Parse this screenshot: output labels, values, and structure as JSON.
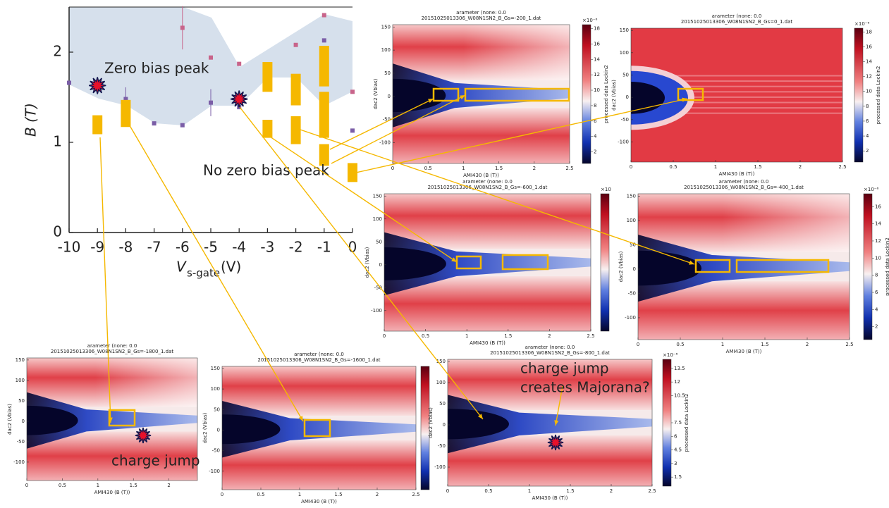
{
  "chart_data": [
    {
      "type": "phase",
      "xlabel": "V",
      "xlabel_sub": "s-gate",
      "xlabel_unit": "(V)",
      "ylabel": "B (T)",
      "x": [
        -10,
        -9,
        -8,
        -7,
        -6,
        -5,
        -4,
        -3,
        -2,
        -1,
        0
      ],
      "xlim": [
        -10,
        0
      ],
      "xticks": [
        -10,
        -9,
        -8,
        -7,
        -6,
        -5,
        -4,
        -3,
        -2,
        -1,
        0
      ],
      "ylim": [
        0,
        2.5
      ],
      "yticks": [
        0,
        1,
        2
      ],
      "series": [
        {
          "color": "#c8648a",
          "values": [
            null,
            null,
            null,
            null,
            2.27,
            1.94,
            1.87,
            null,
            2.08,
            2.41,
            1.56
          ],
          "errors": [
            null,
            null,
            null,
            null,
            0.24,
            null,
            null,
            null,
            null,
            null,
            null
          ]
        },
        {
          "color": "#7b5ea7",
          "values": [
            1.66,
            null,
            1.48,
            1.21,
            1.19,
            1.44,
            1.39,
            null,
            null,
            2.13,
            1.13
          ],
          "errors": [
            null,
            null,
            0.13,
            null,
            null,
            0.15,
            null,
            null,
            null,
            null,
            null
          ]
        }
      ],
      "ranges": {
        "color": "#f5b800",
        "x": [
          -9,
          -8,
          -3,
          -3,
          -2,
          -2,
          -1,
          -1,
          -1,
          0
        ],
        "low": [
          1.09,
          1.17,
          1.05,
          1.56,
          0.98,
          1.41,
          0.74,
          1.05,
          1.62,
          0.56
        ],
        "high": [
          1.3,
          1.47,
          1.25,
          1.89,
          1.29,
          1.76,
          0.98,
          1.56,
          2.07,
          0.77
        ]
      },
      "markers": {
        "color": "#e8102a",
        "x": [
          -9,
          -4
        ],
        "y": [
          1.63,
          1.48
        ]
      },
      "annotations": [
        "Zero bias peak",
        "No zero bias peak"
      ]
    },
    {
      "type": "heatmap",
      "title": [
        "arameter (none: 0.0",
        "20151025013306_W08N1SN2_B_Gs=-200_1.dat"
      ],
      "xlabel": "AMI430 (B (T))",
      "ylabel": "dac2 (Vbias)",
      "xlim": [
        0,
        2.5
      ],
      "xticks": [
        0,
        0.5,
        1,
        1.5,
        2,
        2.5
      ],
      "ylim": [
        -145,
        155
      ],
      "yticks": [
        -100,
        -50,
        0,
        50,
        100,
        150
      ],
      "colorbar_label": "processed data Lockin2",
      "cbar_scale": "×10⁻⁶",
      "clim": [
        0.5,
        18.5
      ],
      "cticks": [
        2,
        4,
        6,
        8,
        10,
        12,
        14,
        16,
        18
      ]
    },
    {
      "type": "heatmap",
      "title": [
        "arameter (none: 0.0",
        "20151025013306_W08N1SN2_B_Gs=0_1.dat"
      ],
      "xlabel": "AMI430 (B (T))",
      "ylabel": "dac2 (Vbias)",
      "xlim": [
        0,
        2.5
      ],
      "xticks": [
        0,
        0.5,
        1,
        1.5,
        2,
        2.5
      ],
      "ylim": [
        -145,
        155
      ],
      "yticks": [
        -100,
        -50,
        0,
        50,
        100,
        150
      ],
      "colorbar_label": "processed data Lockin2",
      "cbar_scale": "×10⁻⁶",
      "clim": [
        0.5,
        18.5
      ],
      "cticks": [
        2,
        4,
        6,
        8,
        10,
        12,
        14,
        16,
        18
      ]
    },
    {
      "type": "heatmap",
      "title": [
        "arameter (none: 0.0",
        "20151025013306_W08N1SN2_B_Gs=-600_1.dat"
      ],
      "xlabel": "AMI430 (B (T))",
      "ylabel": "dac2 (Vbias)",
      "xlim": [
        0,
        2.5
      ],
      "xticks": [
        0,
        0.5,
        1,
        1.5,
        2,
        2.5
      ],
      "ylim": [
        -145,
        155
      ],
      "yticks": [
        -100,
        -50,
        0,
        50,
        100,
        150
      ],
      "cbar_scale": "×10"
    },
    {
      "type": "heatmap",
      "title": [
        "arameter (none: 0.0",
        "20151025013306_W08N1SN2_B_Gs=-400_1.dat"
      ],
      "xlabel": "AMI430 (B (T))",
      "ylabel": "dac2 (Vbias)",
      "xlim": [
        0,
        2.5
      ],
      "xticks": [
        0,
        0.5,
        1,
        1.5,
        2,
        2.5
      ],
      "ylim": [
        -145,
        155
      ],
      "yticks": [
        -100,
        -50,
        0,
        50,
        100,
        150
      ],
      "colorbar_label": "processed data Lockin2",
      "cbar_scale": "×10⁻⁶",
      "clim": [
        0.5,
        17.5
      ],
      "cticks": [
        2,
        4,
        6,
        8,
        10,
        12,
        14,
        16
      ]
    },
    {
      "type": "heatmap",
      "title": [
        "arameter (none: 0.0",
        "20151025013306_W08N1SN2_B_Gs=-1800_1.dat"
      ],
      "xlabel": "AMI430 (B (T))",
      "ylabel": "dac2 (Vbias)",
      "xlim": [
        0,
        2.4
      ],
      "xticks": [
        0,
        0.5,
        1,
        1.5,
        2
      ],
      "ylim": [
        -145,
        155
      ],
      "yticks": [
        -100,
        -50,
        0,
        50,
        100,
        150
      ],
      "annotations": [
        "charge jump"
      ]
    },
    {
      "type": "heatmap",
      "title": [
        "arameter (none: 0.0",
        "20151025013306_W08N1SN2_B_Gs=-1600_1.dat"
      ],
      "xlabel": "AMI430 (B (T))",
      "ylabel": "dac2 (Vbias)",
      "xlim": [
        0,
        2.5
      ],
      "xticks": [
        0,
        0.5,
        1,
        1.5,
        2,
        2.5
      ],
      "ylim": [
        -145,
        155
      ],
      "yticks": [
        -100,
        -50,
        0,
        50,
        100,
        150
      ]
    },
    {
      "type": "heatmap",
      "title": [
        "arameter (none: 0.0",
        "20151025013306_W08N1SN2_B_Gs=-800_1.dat"
      ],
      "xlabel": "AMI430 (B (T))",
      "ylabel": "dac2 (Vbias)",
      "xlim": [
        0,
        2.5
      ],
      "xticks": [
        0,
        0.5,
        1,
        1.5,
        2,
        2.5
      ],
      "ylim": [
        -145,
        155
      ],
      "yticks": [
        -100,
        -50,
        0,
        50,
        100,
        150
      ],
      "colorbar_label": "processed data Lockin2",
      "cbar_scale": "×10⁻⁶",
      "clim": [
        0.5,
        14.5
      ],
      "cticks": [
        1.5,
        3,
        4.5,
        6,
        7.5,
        10.5,
        12,
        13.5
      ],
      "annotations": [
        "charge jump",
        "creates Majorana?"
      ]
    }
  ]
}
